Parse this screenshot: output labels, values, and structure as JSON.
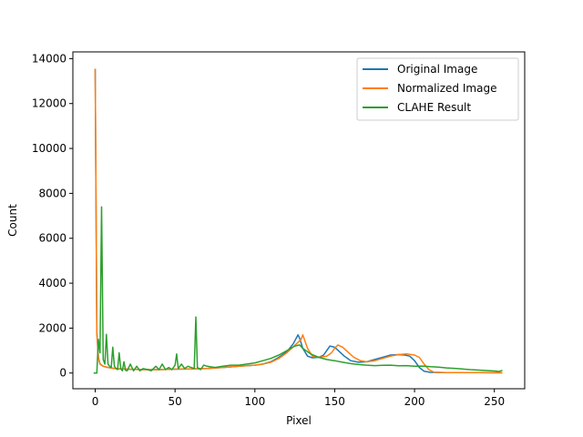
{
  "chart_data": {
    "type": "line",
    "xlabel": "Pixel",
    "ylabel": "Count",
    "xlim": [
      -14,
      269
    ],
    "ylim": [
      -700,
      14300
    ],
    "xticks": [
      0,
      50,
      100,
      150,
      200,
      250
    ],
    "yticks": [
      0,
      2000,
      4000,
      6000,
      8000,
      10000,
      12000,
      14000
    ],
    "grid": false,
    "legend_position": "top-right",
    "series": [
      {
        "name": "Original Image",
        "color": "#1f77b4",
        "points": [
          [
            0,
            13550
          ],
          [
            1,
            1800
          ],
          [
            2,
            700
          ],
          [
            3,
            400
          ],
          [
            5,
            300
          ],
          [
            8,
            250
          ],
          [
            12,
            200
          ],
          [
            20,
            170
          ],
          [
            30,
            150
          ],
          [
            40,
            150
          ],
          [
            50,
            170
          ],
          [
            60,
            180
          ],
          [
            70,
            200
          ],
          [
            80,
            250
          ],
          [
            90,
            300
          ],
          [
            100,
            350
          ],
          [
            105,
            400
          ],
          [
            110,
            500
          ],
          [
            115,
            700
          ],
          [
            120,
            950
          ],
          [
            124,
            1300
          ],
          [
            127,
            1700
          ],
          [
            128,
            1550
          ],
          [
            130,
            1100
          ],
          [
            133,
            750
          ],
          [
            136,
            680
          ],
          [
            140,
            700
          ],
          [
            143,
            800
          ],
          [
            145,
            1000
          ],
          [
            147,
            1200
          ],
          [
            150,
            1150
          ],
          [
            153,
            950
          ],
          [
            156,
            750
          ],
          [
            160,
            550
          ],
          [
            165,
            480
          ],
          [
            170,
            500
          ],
          [
            175,
            600
          ],
          [
            180,
            700
          ],
          [
            185,
            800
          ],
          [
            190,
            820
          ],
          [
            194,
            800
          ],
          [
            197,
            750
          ],
          [
            200,
            550
          ],
          [
            203,
            250
          ],
          [
            206,
            80
          ],
          [
            210,
            30
          ],
          [
            220,
            20
          ],
          [
            240,
            20
          ],
          [
            255,
            10
          ]
        ]
      },
      {
        "name": "Normalized Image",
        "color": "#ff7f0e",
        "points": [
          [
            0,
            13550
          ],
          [
            1,
            1800
          ],
          [
            2,
            700
          ],
          [
            3,
            400
          ],
          [
            5,
            300
          ],
          [
            8,
            250
          ],
          [
            12,
            200
          ],
          [
            20,
            170
          ],
          [
            30,
            150
          ],
          [
            40,
            150
          ],
          [
            50,
            170
          ],
          [
            60,
            180
          ],
          [
            70,
            200
          ],
          [
            80,
            250
          ],
          [
            90,
            300
          ],
          [
            100,
            350
          ],
          [
            105,
            400
          ],
          [
            110,
            480
          ],
          [
            115,
            650
          ],
          [
            120,
            900
          ],
          [
            126,
            1300
          ],
          [
            129,
            1500
          ],
          [
            130,
            1700
          ],
          [
            131,
            1500
          ],
          [
            133,
            1100
          ],
          [
            136,
            750
          ],
          [
            140,
            700
          ],
          [
            145,
            750
          ],
          [
            148,
            900
          ],
          [
            150,
            1100
          ],
          [
            152,
            1250
          ],
          [
            155,
            1150
          ],
          [
            158,
            950
          ],
          [
            162,
            700
          ],
          [
            166,
            550
          ],
          [
            170,
            500
          ],
          [
            175,
            550
          ],
          [
            180,
            650
          ],
          [
            185,
            750
          ],
          [
            190,
            820
          ],
          [
            195,
            850
          ],
          [
            200,
            800
          ],
          [
            203,
            700
          ],
          [
            206,
            400
          ],
          [
            209,
            150
          ],
          [
            212,
            40
          ],
          [
            220,
            20
          ],
          [
            240,
            20
          ],
          [
            255,
            10
          ]
        ]
      },
      {
        "name": "CLAHE Result",
        "color": "#2ca02c",
        "points": [
          [
            -1,
            0
          ],
          [
            1,
            0
          ],
          [
            2,
            1500
          ],
          [
            3,
            900
          ],
          [
            4,
            7400
          ],
          [
            5,
            600
          ],
          [
            6,
            400
          ],
          [
            7,
            1720
          ],
          [
            8,
            400
          ],
          [
            9,
            300
          ],
          [
            10,
            250
          ],
          [
            11,
            1150
          ],
          [
            12,
            300
          ],
          [
            13,
            200
          ],
          [
            14,
            150
          ],
          [
            15,
            900
          ],
          [
            16,
            200
          ],
          [
            17,
            100
          ],
          [
            18,
            500
          ],
          [
            19,
            120
          ],
          [
            20,
            100
          ],
          [
            22,
            400
          ],
          [
            24,
            100
          ],
          [
            26,
            300
          ],
          [
            28,
            100
          ],
          [
            30,
            200
          ],
          [
            33,
            150
          ],
          [
            35,
            100
          ],
          [
            38,
            300
          ],
          [
            40,
            150
          ],
          [
            42,
            400
          ],
          [
            44,
            150
          ],
          [
            46,
            250
          ],
          [
            48,
            150
          ],
          [
            50,
            350
          ],
          [
            51,
            850
          ],
          [
            52,
            200
          ],
          [
            54,
            400
          ],
          [
            56,
            200
          ],
          [
            58,
            300
          ],
          [
            60,
            250
          ],
          [
            62,
            200
          ],
          [
            63,
            2500
          ],
          [
            64,
            250
          ],
          [
            66,
            150
          ],
          [
            68,
            350
          ],
          [
            70,
            300
          ],
          [
            75,
            250
          ],
          [
            80,
            300
          ],
          [
            85,
            350
          ],
          [
            90,
            350
          ],
          [
            95,
            400
          ],
          [
            100,
            450
          ],
          [
            105,
            550
          ],
          [
            110,
            650
          ],
          [
            115,
            800
          ],
          [
            120,
            1000
          ],
          [
            125,
            1200
          ],
          [
            128,
            1250
          ],
          [
            130,
            1100
          ],
          [
            135,
            850
          ],
          [
            140,
            700
          ],
          [
            145,
            600
          ],
          [
            150,
            550
          ],
          [
            155,
            480
          ],
          [
            160,
            420
          ],
          [
            165,
            380
          ],
          [
            170,
            350
          ],
          [
            175,
            330
          ],
          [
            180,
            340
          ],
          [
            185,
            350
          ],
          [
            190,
            320
          ],
          [
            195,
            330
          ],
          [
            200,
            300
          ],
          [
            205,
            310
          ],
          [
            210,
            280
          ],
          [
            215,
            260
          ],
          [
            220,
            230
          ],
          [
            225,
            210
          ],
          [
            230,
            180
          ],
          [
            235,
            150
          ],
          [
            240,
            130
          ],
          [
            245,
            110
          ],
          [
            250,
            90
          ],
          [
            253,
            70
          ],
          [
            255,
            120
          ]
        ]
      }
    ]
  }
}
